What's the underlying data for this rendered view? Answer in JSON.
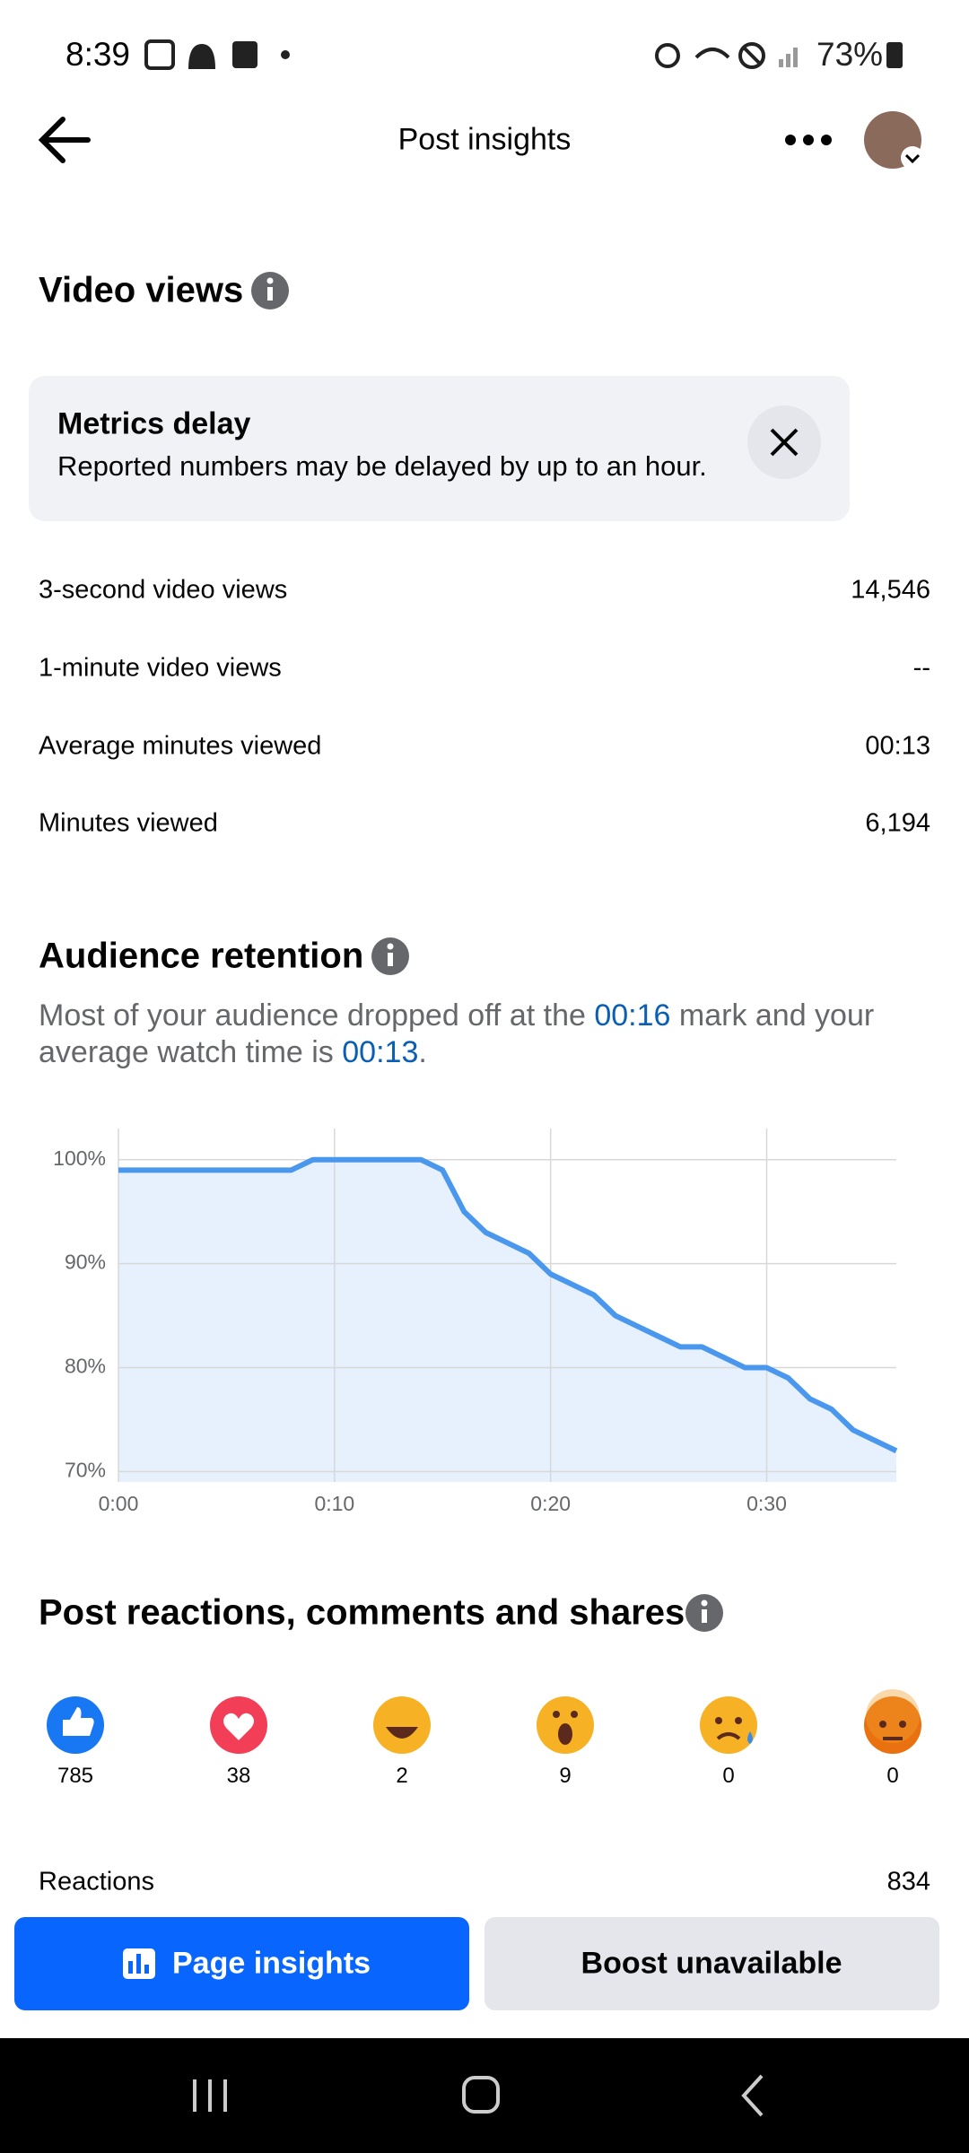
{
  "status_bar": {
    "time": "8:39",
    "battery": "73%"
  },
  "header": {
    "title": "Post insights"
  },
  "video_views": {
    "title": "Video views",
    "notice": {
      "title": "Metrics delay",
      "text": "Reported numbers may be delayed by up to an hour."
    },
    "rows": [
      [
        "3-second video views",
        "14,546"
      ],
      [
        "1-minute video views",
        "--"
      ],
      [
        "Average minutes viewed",
        "00:13"
      ],
      [
        "Minutes viewed",
        "6,194"
      ]
    ]
  },
  "audience_retention": {
    "title": "Audience retention",
    "description": [
      "Most of your audience dropped off at the ",
      "00:16",
      " mark and your average watch time is ",
      "00:13",
      "."
    ]
  },
  "retention_chart": {
    "type": "line",
    "x": [
      0,
      1,
      2,
      3,
      4,
      5,
      6,
      7,
      8,
      9,
      10,
      11,
      12,
      13,
      14,
      15,
      16,
      17,
      18,
      19,
      20,
      21,
      22,
      23,
      24,
      25,
      26,
      27,
      28,
      29,
      30,
      31,
      32,
      33,
      34,
      35,
      36
    ],
    "values": [
      99,
      99,
      99,
      99,
      99,
      99,
      99,
      99,
      99,
      100,
      100,
      100,
      100,
      100,
      100,
      99,
      95,
      93,
      92,
      91,
      89,
      88,
      87,
      85,
      84,
      83,
      82,
      82,
      81,
      80,
      80,
      79,
      77,
      76,
      74,
      73,
      72
    ],
    "color": "#4a97ee",
    "area_color": "#e7f0fd",
    "xlim": [
      0,
      36
    ],
    "ylim": [
      69,
      103
    ],
    "xticks": [
      {
        "value": 0,
        "label": "0:00"
      },
      {
        "value": 10,
        "label": "0:10"
      },
      {
        "value": 20,
        "label": "0:20"
      },
      {
        "value": 30,
        "label": "0:30"
      }
    ],
    "yticks": [
      {
        "value": 70,
        "label": "70%"
      },
      {
        "value": 80,
        "label": "80%"
      },
      {
        "value": 90,
        "label": "90%"
      },
      {
        "value": 100,
        "label": "100%"
      }
    ],
    "grid": true
  },
  "engagement": {
    "title": "Post reactions, comments and shares",
    "reaction_counts": [
      "785",
      "38",
      "2",
      "9",
      "0",
      "0"
    ],
    "reactions_row": [
      "Reactions",
      "834"
    ]
  },
  "buttons": {
    "page_insights": "Page insights",
    "boost": "Boost unavailable"
  }
}
